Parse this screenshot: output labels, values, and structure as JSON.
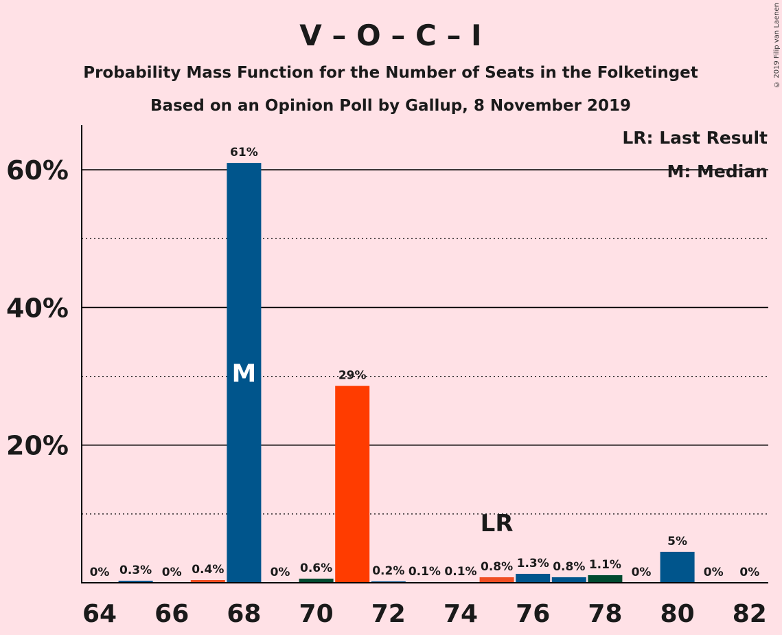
{
  "copyright": "© 2019 Filip van Laenen",
  "chart_data": {
    "type": "bar",
    "title": "V – O – C – I",
    "subtitle1": "Probability Mass Function for the Number of Seats in the Folketinget",
    "subtitle2": "Based on an Opinion Poll by Gallup, 8 November 2019",
    "legend": {
      "placement": "top-right",
      "entries": [
        "LR: Last Result",
        "M: Median"
      ]
    },
    "x": [
      64,
      65,
      66,
      67,
      68,
      69,
      70,
      71,
      72,
      73,
      74,
      75,
      76,
      77,
      78,
      79,
      80,
      81,
      82
    ],
    "values": [
      0,
      0.3,
      0,
      0.4,
      61,
      0,
      0.6,
      28.6,
      0.2,
      0.1,
      0.1,
      0.8,
      1.3,
      0.8,
      1.1,
      0,
      4.5,
      0,
      0
    ],
    "labels": [
      "0%",
      "0.3%",
      "0%",
      "0.4%",
      "61%",
      "0%",
      "0.6%",
      "29%",
      "0.2%",
      "0.1%",
      "0.1%",
      "0.8%",
      "1.3%",
      "0.8%",
      "1.1%",
      "0%",
      "5%",
      "0%",
      "0%"
    ],
    "bar_colors": [
      "#00558C",
      "#00558C",
      "#00558C",
      "#F04D22",
      "#00558C",
      "#00558C",
      "#004A2F",
      "#FF3C00",
      "#00558C",
      "#00558C",
      "#00558C",
      "#F04D22",
      "#00558C",
      "#00558C",
      "#004A2F",
      "#00558C",
      "#00558C",
      "#00558C",
      "#00558C"
    ],
    "x_tick_labels": [
      "64",
      "66",
      "68",
      "70",
      "72",
      "74",
      "76",
      "78",
      "80",
      "82"
    ],
    "y_tick_labels": [
      "20%",
      "40%",
      "60%"
    ],
    "ylim": [
      0,
      66.5
    ],
    "grid": "solid at 20% steps, dotted at 10%",
    "median_seat": 68,
    "median_marker": "M",
    "last_result_seat": 75,
    "last_result_marker": "LR"
  }
}
